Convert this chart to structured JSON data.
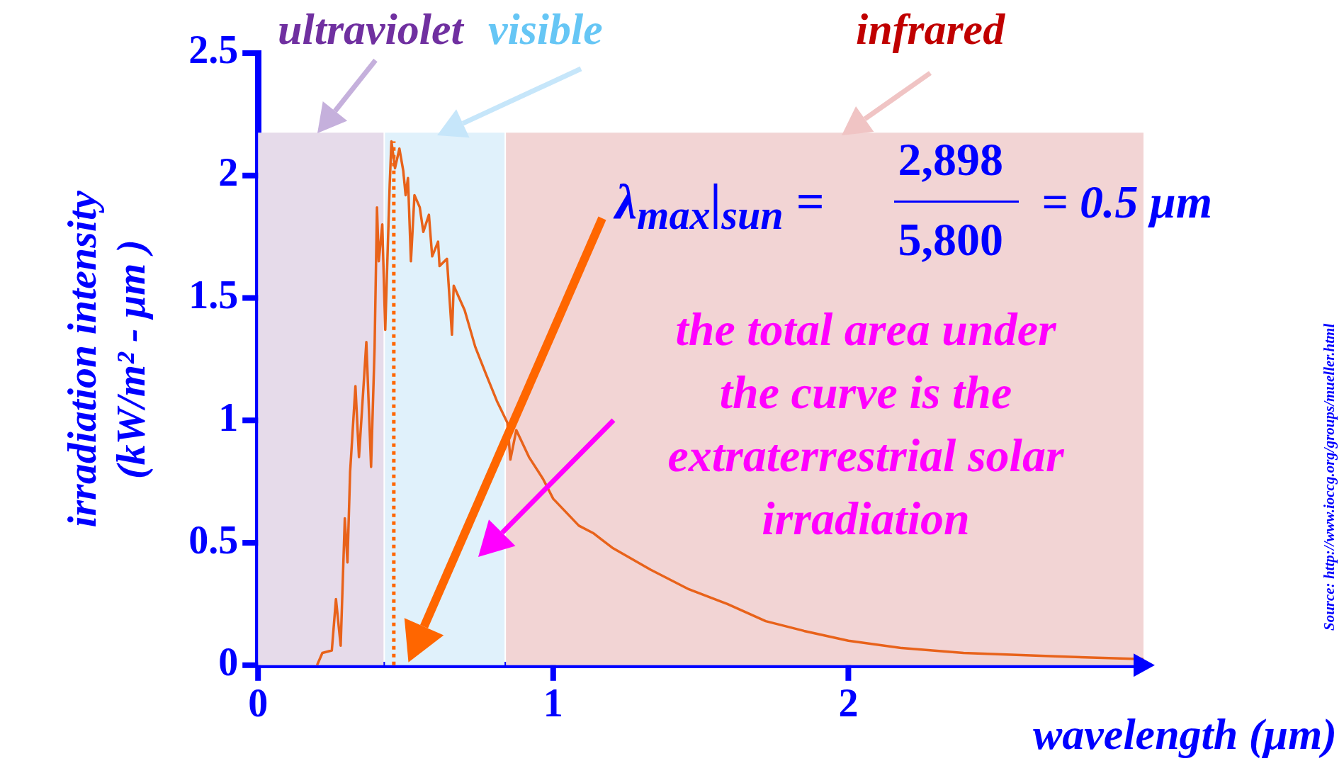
{
  "chart_data": {
    "type": "line",
    "xlabel": "wavelength (μm)",
    "ylabel": "irradiation intensity (kW/m² - μm )",
    "x": [
      0.2,
      0.218,
      0.25,
      0.264,
      0.28,
      0.294,
      0.303,
      0.312,
      0.33,
      0.342,
      0.367,
      0.383,
      0.395,
      0.403,
      0.409,
      0.421,
      0.431,
      0.446,
      0.452,
      0.464,
      0.479,
      0.492,
      0.5,
      0.508,
      0.518,
      0.53,
      0.548,
      0.56,
      0.579,
      0.59,
      0.61,
      0.615,
      0.64,
      0.657,
      0.663,
      0.7,
      0.736,
      0.772,
      0.809,
      0.845,
      0.855,
      0.875,
      0.918,
      0.966,
      1.0,
      1.087,
      1.135,
      1.2,
      1.33,
      1.46,
      1.59,
      1.72,
      1.85,
      2.0,
      2.18,
      2.39,
      2.7,
      3.0
    ],
    "series": [
      {
        "color": "#e8621a",
        "values": [
          0,
          0.05,
          0.06,
          0.27,
          0.08,
          0.6,
          0.42,
          0.79,
          1.14,
          0.85,
          1.32,
          0.81,
          1.3,
          1.87,
          1.65,
          1.8,
          1.37,
          1.96,
          2.14,
          2.03,
          2.11,
          2.02,
          1.92,
          1.99,
          1.65,
          1.92,
          1.87,
          1.77,
          1.84,
          1.67,
          1.73,
          1.63,
          1.66,
          1.35,
          1.55,
          1.45,
          1.3,
          1.19,
          1.08,
          0.99,
          0.84,
          0.96,
          0.85,
          0.76,
          0.68,
          0.57,
          0.54,
          0.48,
          0.39,
          0.31,
          0.25,
          0.18,
          0.14,
          0.1,
          0.07,
          0.05,
          0.036,
          0.025
        ]
      }
    ],
    "xlim": [
      0,
      3.0
    ],
    "xticks": [
      0,
      1,
      2
    ],
    "ylim": [
      0,
      2.5
    ],
    "yticks": [
      0,
      0.5,
      1,
      1.5,
      2,
      2.5
    ],
    "bands": [
      {
        "axis": "x",
        "from": 0,
        "to": 0.43,
        "label": "ultraviolet",
        "color": "#e6dbea"
      },
      {
        "axis": "x",
        "from": 0.43,
        "to": 0.84,
        "label": "visible",
        "color": "#e0f1fb"
      },
      {
        "axis": "x",
        "from": 0.84,
        "to": 3.0,
        "label": "infrared",
        "color": "#f2d4d4"
      }
    ],
    "ref_lines": [
      {
        "axis": "x",
        "value": 0.46,
        "color": "#ff6600",
        "line_style": "dotted"
      }
    ],
    "annotations": [
      "λ$_{max}$|$_{sun}$ =",
      "2,898",
      "5,800",
      "= 0.5 μm",
      "the total area under the curve is the extraterrestrial solar irradiation",
      "Source: http://www.ioccg.org/groups/mueller.html"
    ],
    "grid": false,
    "legend": false,
    "marker": "none",
    "line_style": "solid"
  }
}
